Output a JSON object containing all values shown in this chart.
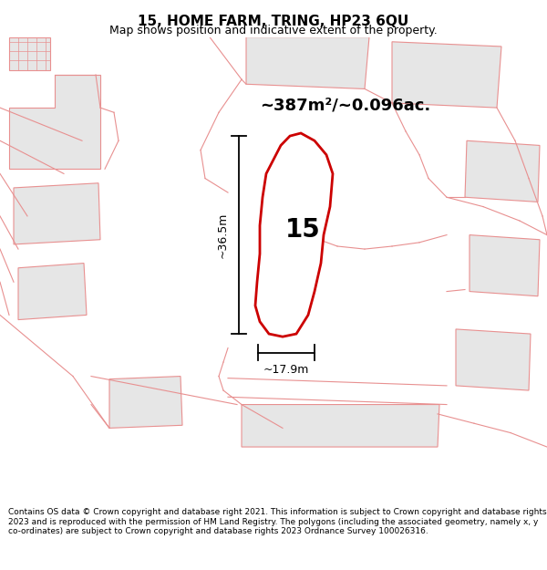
{
  "title": "15, HOME FARM, TRING, HP23 6QU",
  "subtitle": "Map shows position and indicative extent of the property.",
  "footer": "Contains OS data © Crown copyright and database right 2021. This information is subject to Crown copyright and database rights 2023 and is reproduced with the permission of HM Land Registry. The polygons (including the associated geometry, namely x, y co-ordinates) are subject to Crown copyright and database rights 2023 Ordnance Survey 100026316.",
  "area_label": "~387m²/~0.096ac.",
  "dim_vertical": "~36.5m",
  "dim_horizontal": "~17.9m",
  "property_label": "15",
  "background_color": "#ffffff",
  "map_bg_color": "#ffffff",
  "building_fill": "#e6e6e6",
  "building_stroke": "#e89090",
  "property_fill": "#ffffff",
  "property_stroke": "#cc0000",
  "title_fontsize": 11,
  "subtitle_fontsize": 9,
  "footer_fontsize": 6.5
}
